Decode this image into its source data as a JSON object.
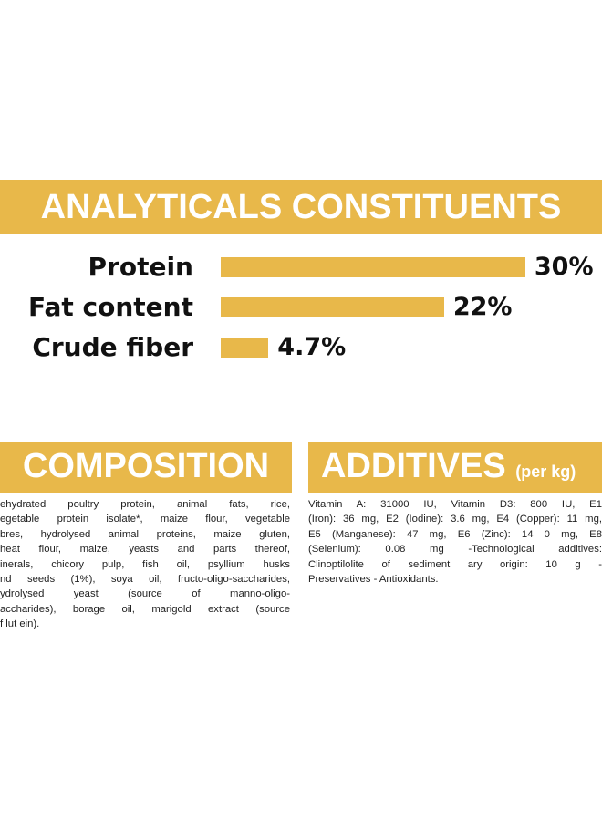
{
  "chart_data": {
    "type": "bar",
    "orientation": "horizontal",
    "title": "ANALYTICALS CONSTITUENTS",
    "categories": [
      "Protein",
      "Fat content",
      "Crude fiber"
    ],
    "values": [
      30,
      22,
      4.7
    ],
    "value_labels": [
      "30%",
      "22%",
      "4.7%"
    ],
    "color": "#e8b84a"
  },
  "composition": {
    "title": "COMPOSITION",
    "lines": [
      "ehydrated poultry protein, animal fats, rice,",
      "egetable protein isolate*, maize flour, vegetable",
      "bres, hydrolysed animal proteins, maize gluten,",
      "heat flour, maize, yeasts and parts thereof,",
      "inerals, chicory pulp, fish oil, psyllium husks",
      "nd seeds (1%), soya oil, fructo-oligo-saccharides,",
      "ydrolysed yeast (source of manno-oligo-",
      "accharides), borage oil, marigold extract (source",
      "f lut ein)."
    ]
  },
  "additives": {
    "title": "ADDITIVES",
    "subtitle": "(per kg)",
    "lines": [
      "Vitamin A: 31000 IU, Vitamin D3: 800 IU, E1",
      "(Iron): 36 mg, E2 (Iodine): 3.6 mg, E4 (Copper): 11 mg,",
      "E5 (Manganese): 47 mg, E6 (Zinc): 14 0 mg, E8",
      "(Selenium): 0.08 mg -Technological additives:",
      "Clinoptilolite of sediment ary origin: 10 g -",
      "Preservatives - Antioxidants."
    ]
  }
}
